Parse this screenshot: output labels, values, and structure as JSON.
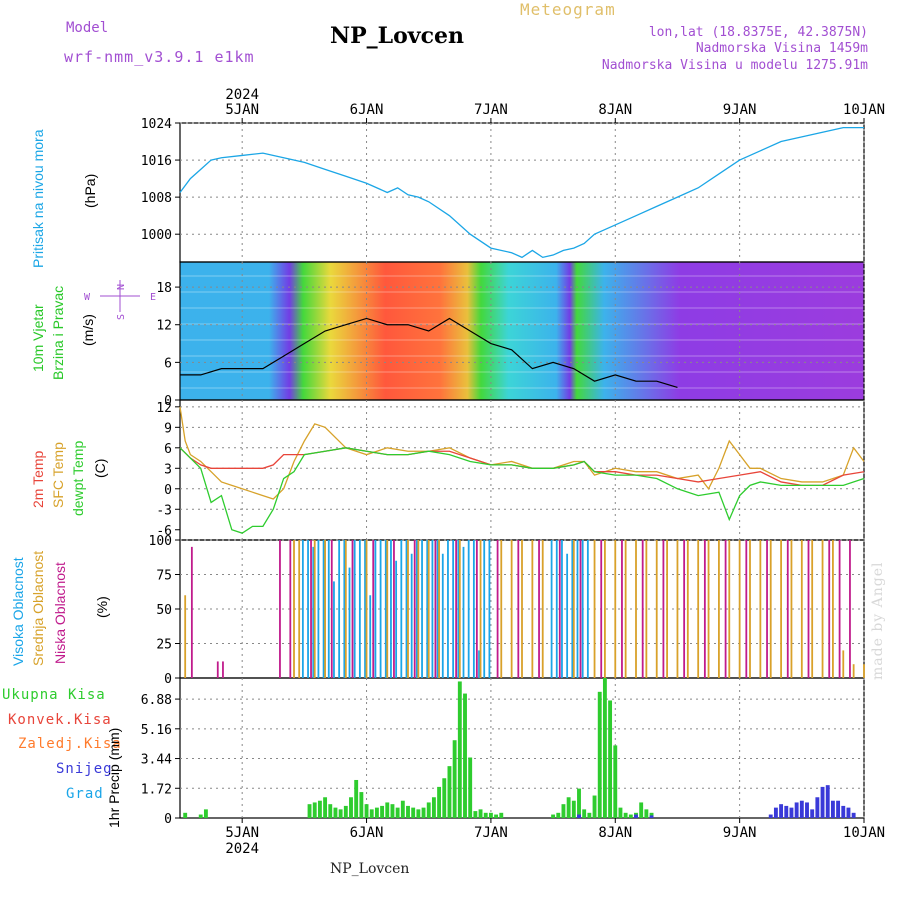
{
  "header": {
    "model_label": "Model",
    "model_name": "wrf-nmm_v3.9.1 e1km",
    "station_title": "NP_Lovcen",
    "meteogram_label": "Meteogram",
    "lonlat": "lon,lat (18.8375E, 42.3875N)",
    "elevation": "Nadmorska Visina 1459m",
    "model_elevation": "Nadmorska Visina u modelu 1275.91m"
  },
  "footer": {
    "station": "NP_Lovcen",
    "watermark": "made by Angel"
  },
  "time_axis": {
    "year": "2024",
    "days": [
      "5JAN",
      "6JAN",
      "7JAN",
      "8JAN",
      "9JAN",
      "10JAN"
    ],
    "start_hour": 12,
    "end_hour": 144
  },
  "panels": {
    "pressure": {
      "label_main": "Pritisak na nivou mora",
      "unit": "(hPa)",
      "ticks": [
        "1024",
        "1016",
        "1008",
        "1000"
      ],
      "color": "#1ba6e6"
    },
    "wind": {
      "label_main": "10m Vjetar",
      "label_sub": "Brzina i Pravac",
      "unit": "(m/s)",
      "ticks": [
        "18",
        "12",
        "6",
        "0"
      ],
      "compass_n": "N",
      "compass_s": "S",
      "compass_w": "W",
      "compass_e": "E"
    },
    "temp": {
      "label_2m": "2m Temp",
      "label_sfc": "SFC Temp",
      "label_dew": "dewpt Temp",
      "unit": "(C)",
      "ticks": [
        "12",
        "9",
        "6",
        "3",
        "0",
        "-3",
        "-6"
      ]
    },
    "cloud": {
      "label_high": "Visoka Oblacnost",
      "label_mid": "Srednja Oblacnost",
      "label_low": "Niska Oblacnost",
      "unit": "(%)",
      "ticks": [
        "100",
        "75",
        "50",
        "25",
        "0"
      ]
    },
    "precip": {
      "label_total": "Ukupna Kisa",
      "label_conv": "Konvek.Kisa",
      "label_frz": "Zaledj.Kisa",
      "label_snow": "Snijeg",
      "label_grad": "Grad",
      "unit": "1hr Precip (mm)",
      "ticks": [
        "6.88",
        "5.16",
        "3.44",
        "1.72",
        "0"
      ]
    }
  },
  "colors": {
    "pressure": "#1ba6e6",
    "t2m": "#e8453a",
    "tsfc": "#d7a22a",
    "tdew": "#2ecc2e",
    "cloud_high": "#1aa5e8",
    "cloud_mid": "#d9a12a",
    "cloud_low": "#c01b8c",
    "precip_total": "#2ecc2e",
    "precip_snow": "#3a3ad8",
    "precip_grad": "#1aa5e8"
  },
  "chart_data": [
    {
      "type": "line",
      "title": "Pritisak na nivou mora",
      "ylabel": "(hPa)",
      "x_unit": "hours since 4JAN 00UTC",
      "ylim": [
        994,
        1024
      ],
      "series": [
        {
          "name": "Pritisak na nivou mora",
          "x": [
            12,
            14,
            16,
            18,
            20,
            24,
            28,
            32,
            36,
            40,
            44,
            48,
            52,
            54,
            56,
            58,
            60,
            64,
            68,
            72,
            76,
            78,
            80,
            82,
            84,
            86,
            88,
            90,
            92,
            94,
            96,
            100,
            104,
            108,
            112,
            116,
            120,
            124,
            128,
            132,
            136,
            140,
            144
          ],
          "values": [
            1009,
            1012,
            1014,
            1016,
            1016.5,
            1017,
            1017.5,
            1016.5,
            1015.5,
            1014,
            1012.5,
            1011,
            1009,
            1010,
            1008.5,
            1008,
            1007,
            1004,
            1000,
            997,
            996,
            995,
            996.5,
            995,
            995.5,
            996.5,
            997,
            998,
            1000,
            1001,
            1002,
            1004,
            1006,
            1008,
            1010,
            1013,
            1016,
            1018,
            1020,
            1021,
            1022,
            1023,
            1023
          ]
        }
      ]
    },
    {
      "type": "line",
      "title": "10m Vjetar Brzina i Pravac",
      "ylabel": "(m/s)",
      "x_unit": "hours since 4JAN 00UTC",
      "ylim": [
        0,
        22
      ],
      "series": [
        {
          "name": "wind speed",
          "x": [
            12,
            16,
            20,
            24,
            28,
            32,
            36,
            40,
            44,
            48,
            52,
            56,
            60,
            64,
            68,
            72,
            76,
            80,
            84,
            88,
            92,
            96,
            100,
            104,
            108
          ],
          "values": [
            4,
            4,
            5,
            5,
            5,
            7,
            9,
            11,
            12,
            13,
            12,
            12,
            11,
            13,
            11,
            9,
            8,
            5,
            6,
            5,
            3,
            4,
            3,
            3,
            2
          ]
        }
      ]
    },
    {
      "type": "line",
      "title": "2m Temp / SFC Temp / dewpt Temp",
      "ylabel": "(C)",
      "x_unit": "hours since 4JAN 00UTC",
      "ylim": [
        -7.5,
        13
      ],
      "series": [
        {
          "name": "2m Temp",
          "x": [
            12,
            14,
            16,
            18,
            20,
            24,
            28,
            30,
            32,
            36,
            40,
            44,
            48,
            52,
            56,
            60,
            64,
            68,
            72,
            76,
            80,
            84,
            88,
            90,
            92,
            96,
            100,
            104,
            108,
            112,
            116,
            120,
            124,
            128,
            132,
            136,
            140,
            144
          ],
          "values": [
            6,
            4.5,
            3.5,
            3,
            3,
            3,
            3,
            3.5,
            5,
            5,
            5.5,
            6,
            5.5,
            5,
            5,
            5.5,
            5.5,
            4.5,
            3.5,
            3.5,
            3,
            3,
            3.5,
            4,
            2.5,
            2.5,
            2,
            2,
            1.5,
            1,
            1.5,
            2,
            2.5,
            1,
            0.5,
            0.5,
            2,
            2.5
          ]
        },
        {
          "name": "SFC Temp",
          "x": [
            12,
            13,
            14,
            16,
            18,
            20,
            22,
            24,
            26,
            28,
            30,
            32,
            34,
            36,
            38,
            40,
            44,
            48,
            52,
            56,
            60,
            64,
            68,
            72,
            76,
            80,
            84,
            88,
            90,
            92,
            96,
            100,
            104,
            108,
            112,
            114,
            116,
            118,
            120,
            122,
            124,
            128,
            132,
            136,
            140,
            142,
            144
          ],
          "values": [
            12,
            7,
            5,
            4,
            2.5,
            1,
            0.5,
            0,
            -0.5,
            -1,
            -1.5,
            0,
            4,
            7,
            9.5,
            9,
            6,
            5,
            6,
            5.5,
            5.5,
            6,
            4.5,
            3.5,
            4,
            3,
            3,
            4,
            4,
            2,
            3,
            2.5,
            2.5,
            1.5,
            2,
            0,
            3,
            7,
            5,
            3,
            3,
            1.5,
            1,
            1,
            2,
            6,
            4
          ]
        },
        {
          "name": "dewpt Temp",
          "x": [
            12,
            14,
            16,
            18,
            20,
            22,
            24,
            26,
            28,
            30,
            32,
            34,
            36,
            40,
            44,
            48,
            52,
            56,
            60,
            64,
            68,
            72,
            76,
            80,
            84,
            88,
            90,
            92,
            96,
            100,
            104,
            108,
            112,
            116,
            118,
            120,
            122,
            124,
            128,
            132,
            136,
            140,
            144
          ],
          "values": [
            6,
            4.5,
            3,
            -2,
            -1,
            -6,
            -6.5,
            -5.5,
            -5.5,
            -3,
            1.5,
            2.5,
            5,
            5.5,
            6,
            5.5,
            5,
            5,
            5.5,
            5,
            4,
            3.5,
            3.5,
            3,
            3,
            3.5,
            4,
            2.5,
            2,
            2,
            1.5,
            0,
            -1,
            -0.5,
            -4.5,
            -1,
            0.5,
            1,
            0.5,
            0.5,
            0.5,
            0.5,
            1.5
          ]
        }
      ]
    },
    {
      "type": "bar",
      "title": "Visoka / Srednja / Niska Oblacnost",
      "ylabel": "(%)",
      "x_unit": "hours since 4JAN 00UTC",
      "ylim": [
        0,
        100
      ],
      "series": [
        {
          "name": "Visoka Oblacnost",
          "x": [
            36,
            37,
            38,
            39,
            40,
            41,
            42,
            43,
            44,
            45,
            46,
            47,
            48,
            49,
            50,
            51,
            52,
            53,
            54,
            55,
            56,
            57,
            58,
            59,
            60,
            61,
            62,
            63,
            64,
            65,
            66,
            67,
            68,
            69,
            70,
            71,
            72,
            84,
            85,
            86,
            87,
            88,
            89,
            90,
            91
          ],
          "values": [
            100,
            100,
            95,
            100,
            100,
            100,
            70,
            100,
            100,
            80,
            100,
            100,
            100,
            60,
            100,
            100,
            100,
            100,
            85,
            100,
            100,
            90,
            100,
            100,
            100,
            100,
            100,
            90,
            100,
            100,
            100,
            95,
            100,
            100,
            20,
            100,
            100,
            100,
            100,
            100,
            90,
            100,
            100,
            100,
            100
          ]
        },
        {
          "name": "Srednja Oblacnost",
          "x": [
            13,
            30,
            32,
            34,
            35,
            38,
            40,
            44,
            48,
            52,
            56,
            58,
            60,
            62,
            66,
            70,
            74,
            76,
            78,
            80,
            82,
            88,
            92,
            94,
            96,
            98,
            100,
            102,
            104,
            106,
            108,
            110,
            112,
            114,
            116,
            118,
            120,
            122,
            124,
            126,
            128,
            130,
            132,
            134,
            136,
            138,
            140,
            142,
            144
          ],
          "values": [
            60,
            0,
            0,
            100,
            100,
            100,
            100,
            100,
            100,
            100,
            100,
            100,
            100,
            100,
            100,
            100,
            100,
            100,
            100,
            100,
            100,
            100,
            100,
            100,
            100,
            100,
            100,
            100,
            100,
            100,
            100,
            100,
            100,
            100,
            100,
            100,
            100,
            100,
            100,
            100,
            100,
            100,
            100,
            100,
            100,
            100,
            20,
            10,
            10
          ]
        },
        {
          "name": "Niska Oblacnost",
          "x": [
            14,
            19,
            20,
            31,
            33,
            37,
            41,
            45,
            49,
            53,
            57,
            61,
            65,
            69,
            73,
            77,
            81,
            85,
            89,
            93,
            97,
            101,
            105,
            109,
            113,
            117,
            121,
            125,
            129,
            133,
            137,
            139,
            141
          ],
          "values": [
            95,
            12,
            12,
            100,
            100,
            100,
            100,
            100,
            100,
            100,
            100,
            100,
            100,
            100,
            100,
            100,
            100,
            100,
            100,
            100,
            100,
            100,
            100,
            100,
            100,
            100,
            100,
            100,
            100,
            100,
            100,
            100,
            100
          ]
        }
      ]
    },
    {
      "type": "bar",
      "title": "1hr Precip",
      "ylabel": "1hr Precip (mm)",
      "x_unit": "hours since 4JAN 00UTC",
      "ylim": [
        0,
        8.1
      ],
      "series": [
        {
          "name": "Ukupna Kisa",
          "x": [
            13,
            16,
            17,
            37,
            38,
            39,
            40,
            41,
            42,
            43,
            44,
            45,
            46,
            47,
            48,
            49,
            50,
            51,
            52,
            53,
            54,
            55,
            56,
            57,
            58,
            59,
            60,
            61,
            62,
            63,
            64,
            65,
            66,
            67,
            68,
            69,
            70,
            71,
            72,
            73,
            74,
            84,
            85,
            86,
            87,
            88,
            89,
            90,
            91,
            92,
            93,
            94,
            95,
            96,
            97,
            98,
            99,
            100,
            101,
            102,
            103
          ],
          "values": [
            0.3,
            0.2,
            0.5,
            0.8,
            0.9,
            1.0,
            1.2,
            0.8,
            0.6,
            0.5,
            0.7,
            1.2,
            2.2,
            1.5,
            0.8,
            0.5,
            0.6,
            0.7,
            0.9,
            0.8,
            0.6,
            1.0,
            0.7,
            0.6,
            0.5,
            0.6,
            0.9,
            1.2,
            1.8,
            2.3,
            3.0,
            4.5,
            7.9,
            7.2,
            3.5,
            0.4,
            0.5,
            0.3,
            0.3,
            0.2,
            0.3,
            0.2,
            0.3,
            0.8,
            1.2,
            1.0,
            1.7,
            0.5,
            0.3,
            1.3,
            7.3,
            8.1,
            6.8,
            4.2,
            0.6,
            0.3,
            0.2,
            0.3,
            0.9,
            0.5,
            0.3
          ]
        },
        {
          "name": "Snijeg",
          "x": [
            89,
            100,
            103,
            126,
            127,
            128,
            129,
            130,
            131,
            132,
            133,
            134,
            135,
            136,
            137,
            138,
            139,
            140,
            141,
            142
          ],
          "values": [
            0.2,
            0.2,
            0.15,
            0.2,
            0.6,
            0.8,
            0.7,
            0.6,
            0.9,
            1.0,
            0.9,
            0.5,
            1.2,
            1.8,
            1.9,
            1.0,
            1.0,
            0.7,
            0.6,
            0.3
          ]
        }
      ]
    }
  ]
}
